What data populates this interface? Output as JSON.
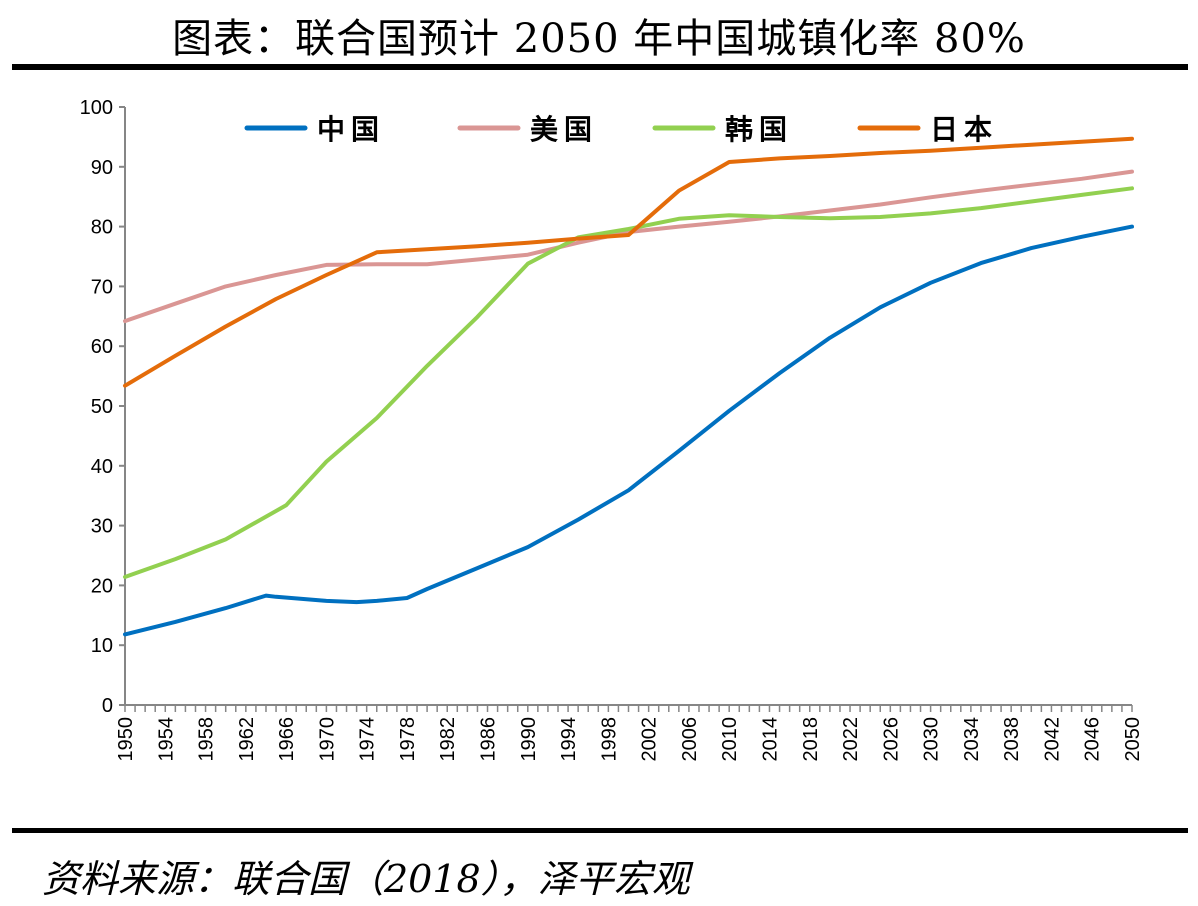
{
  "title": "图表：联合国预计 2050 年中国城镇化率 80%",
  "source": "资料来源：联合国（2018），泽平宏观",
  "chart_data": {
    "type": "line",
    "title": "图表：联合国预计 2050 年中国城镇化率 80%",
    "xlabel": "",
    "ylabel": "",
    "xlim": [
      1950,
      2050
    ],
    "ylim": [
      0,
      100
    ],
    "yticks": [
      0,
      10,
      20,
      30,
      40,
      50,
      60,
      70,
      80,
      90,
      100
    ],
    "xticks": [
      1950,
      1954,
      1958,
      1962,
      1966,
      1970,
      1974,
      1978,
      1982,
      1986,
      1990,
      1994,
      1998,
      2002,
      2006,
      2010,
      2014,
      2018,
      2022,
      2026,
      2030,
      2034,
      2038,
      2042,
      2046,
      2050
    ],
    "grid": false,
    "legend_position": "top",
    "series": [
      {
        "name": "中国",
        "color": "#0070C0",
        "x": [
          1950,
          1955,
          1960,
          1964,
          1965,
          1970,
          1973,
          1975,
          1978,
          1980,
          1985,
          1990,
          1995,
          2000,
          2005,
          2010,
          2015,
          2020,
          2025,
          2030,
          2035,
          2040,
          2045,
          2050
        ],
        "y": [
          11.8,
          13.9,
          16.2,
          18.3,
          18.1,
          17.4,
          17.2,
          17.4,
          17.9,
          19.4,
          22.9,
          26.4,
          31.0,
          35.9,
          42.5,
          49.2,
          55.5,
          61.4,
          66.5,
          70.6,
          73.9,
          76.4,
          78.3,
          80.0
        ]
      },
      {
        "name": "美国",
        "color": "#DA9694",
        "x": [
          1950,
          1955,
          1960,
          1965,
          1970,
          1975,
          1980,
          1985,
          1990,
          1995,
          2000,
          2005,
          2010,
          2015,
          2020,
          2025,
          2030,
          2035,
          2040,
          2045,
          2050
        ],
        "y": [
          64.2,
          67.1,
          70.0,
          71.9,
          73.6,
          73.7,
          73.7,
          74.5,
          75.3,
          77.3,
          79.1,
          80.0,
          80.8,
          81.7,
          82.7,
          83.7,
          84.9,
          86.0,
          87.0,
          88.0,
          89.2
        ]
      },
      {
        "name": "韩国",
        "color": "#92D050",
        "x": [
          1950,
          1955,
          1960,
          1966,
          1970,
          1975,
          1980,
          1985,
          1990,
          1995,
          2000,
          2005,
          2010,
          2015,
          2020,
          2025,
          2030,
          2035,
          2040,
          2045,
          2050
        ],
        "y": [
          21.4,
          24.4,
          27.7,
          33.4,
          40.7,
          48.0,
          56.7,
          64.9,
          73.8,
          78.2,
          79.6,
          81.3,
          81.9,
          81.6,
          81.4,
          81.6,
          82.2,
          83.1,
          84.2,
          85.3,
          86.4
        ]
      },
      {
        "name": "日本",
        "color": "#E46C0A",
        "x": [
          1950,
          1955,
          1960,
          1965,
          1970,
          1975,
          1980,
          1985,
          1990,
          1995,
          2000,
          2005,
          2010,
          2015,
          2020,
          2025,
          2030,
          2035,
          2040,
          2045,
          2050
        ],
        "y": [
          53.4,
          58.4,
          63.3,
          67.9,
          71.9,
          75.7,
          76.2,
          76.7,
          77.3,
          78.0,
          78.6,
          86.0,
          90.8,
          91.4,
          91.8,
          92.3,
          92.7,
          93.2,
          93.7,
          94.2,
          94.7
        ]
      }
    ]
  }
}
